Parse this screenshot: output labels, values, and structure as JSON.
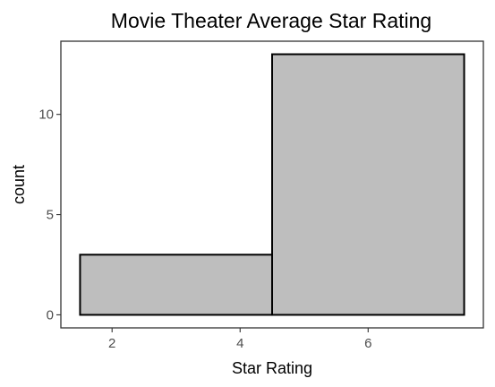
{
  "chart_data": {
    "type": "bar",
    "title": "Movie Theater Average Star Rating",
    "xlabel": "Star Rating",
    "ylabel": "count",
    "bins": [
      {
        "x0": 1.5,
        "x1": 4.5,
        "count": 3
      },
      {
        "x0": 4.5,
        "x1": 7.5,
        "count": 13
      }
    ],
    "x_ticks": [
      2,
      4,
      6
    ],
    "y_ticks": [
      0,
      5,
      10
    ],
    "xlim": [
      1.2,
      7.8
    ],
    "ylim": [
      -0.65,
      13.65
    ],
    "grid": false,
    "legend": "none",
    "bar_fill": "#bebebe",
    "bar_stroke": "#000000"
  }
}
